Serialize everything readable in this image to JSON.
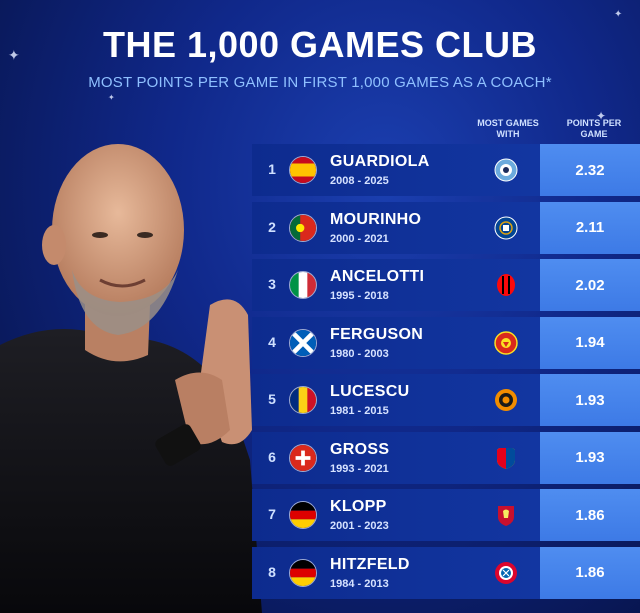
{
  "header": {
    "title": "THE 1,000 GAMES CLUB",
    "subtitle": "MOST POINTS PER GAME IN FIRST 1,000 GAMES AS A COACH*"
  },
  "columns": {
    "most_games_with": "MOST GAMES WITH",
    "points_per_game": "POINTS PER GAME"
  },
  "colors": {
    "background": "#10288a",
    "row": "#143aa8",
    "ppg_cell": "#3d7ae6",
    "subtitle": "#8fc0ff"
  },
  "coaches": [
    {
      "rank": "1",
      "name": "GUARDIOLA",
      "years": "2008 - 2025",
      "flag": "spain-flag-icon",
      "club": "man-city-crest-icon",
      "ppg": "2.32"
    },
    {
      "rank": "2",
      "name": "MOURINHO",
      "years": "2000 - 2021",
      "flag": "portugal-flag-icon",
      "club": "chelsea-crest-icon",
      "ppg": "2.11"
    },
    {
      "rank": "3",
      "name": "ANCELOTTI",
      "years": "1995 - 2018",
      "flag": "italy-flag-icon",
      "club": "ac-milan-crest-icon",
      "ppg": "2.02"
    },
    {
      "rank": "4",
      "name": "FERGUSON",
      "years": "1980 - 2003",
      "flag": "scotland-flag-icon",
      "club": "man-united-crest-icon",
      "ppg": "1.94"
    },
    {
      "rank": "5",
      "name": "LUCESCU",
      "years": "1981 - 2015",
      "flag": "romania-flag-icon",
      "club": "shakhtar-crest-icon",
      "ppg": "1.93"
    },
    {
      "rank": "6",
      "name": "GROSS",
      "years": "1993 - 2021",
      "flag": "switzerland-flag-icon",
      "club": "basel-crest-icon",
      "ppg": "1.93"
    },
    {
      "rank": "7",
      "name": "KLOPP",
      "years": "2001 - 2023",
      "flag": "germany-flag-icon",
      "club": "liverpool-crest-icon",
      "ppg": "1.86"
    },
    {
      "rank": "8",
      "name": "HITZFELD",
      "years": "1984 - 2013",
      "flag": "germany-flag-icon",
      "club": "bayern-crest-icon",
      "ppg": "1.86"
    }
  ]
}
